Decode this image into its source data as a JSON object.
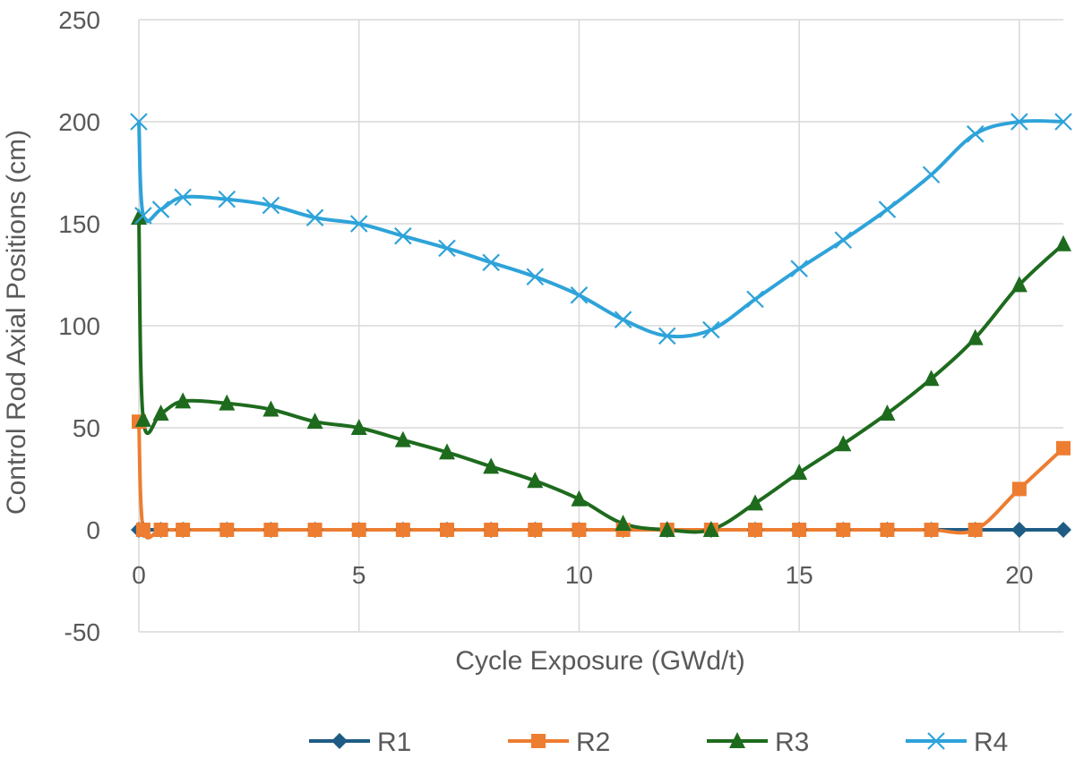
{
  "chart_data": {
    "type": "line",
    "title": "",
    "xlabel": "Cycle Exposure (GWd/t)",
    "ylabel": "Control Rod Axial Positions (cm)",
    "xlim": [
      0,
      21
    ],
    "ylim": [
      -50,
      250
    ],
    "xticks": [
      0,
      5,
      10,
      15,
      20
    ],
    "yticks": [
      -50,
      0,
      50,
      100,
      150,
      200,
      250
    ],
    "grid": true,
    "smooth": true,
    "legend_position": "bottom",
    "series": [
      {
        "name": "R1",
        "color": "#1f5c85",
        "marker": "diamond",
        "x": [
          0,
          0.1,
          0.5,
          1,
          2,
          3,
          4,
          5,
          6,
          7,
          8,
          9,
          10,
          11,
          12,
          13,
          14,
          15,
          16,
          17,
          18,
          19,
          20,
          21
        ],
        "y": [
          0,
          0,
          0,
          0,
          0,
          0,
          0,
          0,
          0,
          0,
          0,
          0,
          0,
          0,
          0,
          0,
          0,
          0,
          0,
          0,
          0,
          0,
          0,
          0
        ]
      },
      {
        "name": "R2",
        "color": "#ed7d31",
        "marker": "square",
        "x": [
          0,
          0.1,
          0.5,
          1,
          2,
          3,
          4,
          5,
          6,
          7,
          8,
          9,
          10,
          11,
          12,
          13,
          14,
          15,
          16,
          17,
          18,
          19,
          20,
          21
        ],
        "y": [
          53,
          0,
          0,
          0,
          0,
          0,
          0,
          0,
          0,
          0,
          0,
          0,
          0,
          0,
          0,
          0,
          0,
          0,
          0,
          0,
          0,
          0,
          20,
          40
        ]
      },
      {
        "name": "R3",
        "color": "#1e6b1e",
        "marker": "triangle",
        "x": [
          0,
          0.1,
          0.5,
          1,
          2,
          3,
          4,
          5,
          6,
          7,
          8,
          9,
          10,
          11,
          12,
          13,
          14,
          15,
          16,
          17,
          18,
          19,
          20,
          21
        ],
        "y": [
          153,
          54,
          57,
          63,
          62,
          59,
          53,
          50,
          44,
          38,
          31,
          24,
          15,
          3,
          0,
          0,
          13,
          28,
          42,
          57,
          74,
          94,
          120,
          140
        ]
      },
      {
        "name": "R4",
        "color": "#2ea3d9",
        "marker": "x",
        "x": [
          0,
          0.1,
          0.5,
          1,
          2,
          3,
          4,
          5,
          6,
          7,
          8,
          9,
          10,
          11,
          12,
          13,
          14,
          15,
          16,
          17,
          18,
          19,
          20,
          21
        ],
        "y": [
          200,
          154,
          157,
          163,
          162,
          159,
          153,
          150,
          144,
          138,
          131,
          124,
          115,
          103,
          95,
          98,
          113,
          128,
          142,
          157,
          174,
          194,
          200,
          200
        ]
      }
    ]
  }
}
